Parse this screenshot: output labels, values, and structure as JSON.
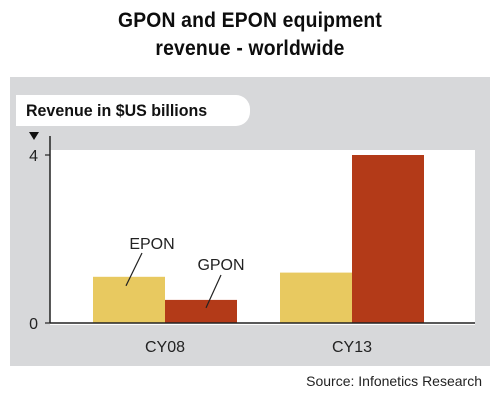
{
  "chart_data": {
    "type": "bar",
    "title": "GPON and EPON equipment",
    "subtitle": "revenue - worldwide",
    "ylabel": "Revenue in $US billions",
    "xlabel": "",
    "categories": [
      "CY08",
      "CY13"
    ],
    "series": [
      {
        "name": "EPON",
        "values": [
          1.1,
          1.2
        ],
        "color": "#e8c960"
      },
      {
        "name": "GPON",
        "values": [
          0.55,
          4.0
        ],
        "color": "#b33a18"
      }
    ],
    "ylim": [
      0,
      4
    ],
    "yticks": [
      "0",
      "4"
    ],
    "grid": false,
    "legend": "inline labels"
  },
  "source": "Source: Infonetics Research",
  "colors": {
    "panel_background": "#d7d8da",
    "epon": "#e8c960",
    "gpon": "#b33a18",
    "axis": "#222222"
  }
}
